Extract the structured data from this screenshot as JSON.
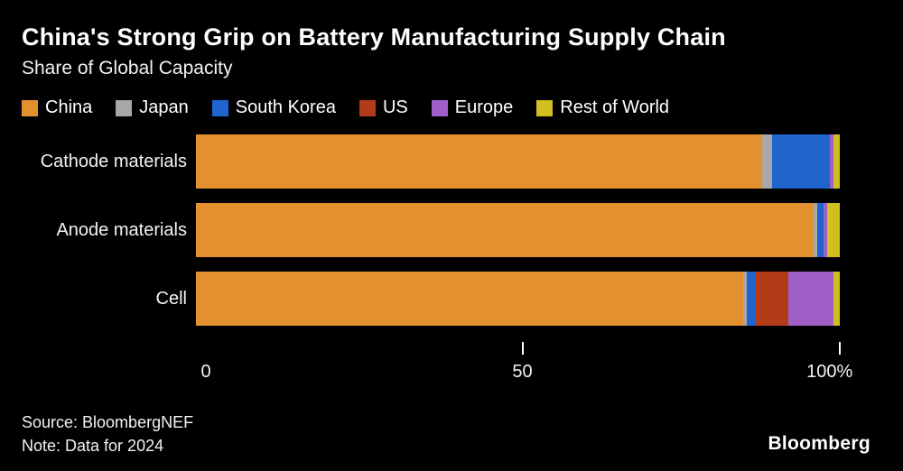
{
  "chart": {
    "title": "China's Strong Grip on Battery Manufacturing Supply Chain",
    "subtitle": "Share of Global Capacity"
  },
  "chart_data": {
    "type": "bar",
    "orientation": "horizontal-stacked",
    "title": "China's Strong Grip on Battery Manufacturing Supply Chain",
    "subtitle": "Share of Global Capacity",
    "categories": [
      "Cathode materials",
      "Anode materials",
      "Cell"
    ],
    "series": [
      {
        "name": "China",
        "color": "#E2912E",
        "values": [
          88,
          96,
          85
        ]
      },
      {
        "name": "Japan",
        "color": "#A8A8A8",
        "values": [
          1.5,
          0.5,
          0.5
        ]
      },
      {
        "name": "South Korea",
        "color": "#2064CE",
        "values": [
          9,
          1,
          1.5
        ]
      },
      {
        "name": "US",
        "color": "#B23C17",
        "values": [
          0,
          0,
          5
        ]
      },
      {
        "name": "Europe",
        "color": "#A05FC6",
        "values": [
          0.5,
          0.5,
          7
        ]
      },
      {
        "name": "Rest of World",
        "color": "#D1BE1F",
        "values": [
          1,
          2,
          1
        ]
      }
    ],
    "xlim": [
      0,
      100
    ],
    "x_ticks": [
      "0",
      "50",
      "100%"
    ],
    "tick_positions_pct": [
      0,
      50,
      100
    ],
    "legend_position": "top",
    "grid": false
  },
  "footer": {
    "source": "Source: BloombergNEF",
    "note": "Note: Data for 2024",
    "brand": "Bloomberg"
  }
}
